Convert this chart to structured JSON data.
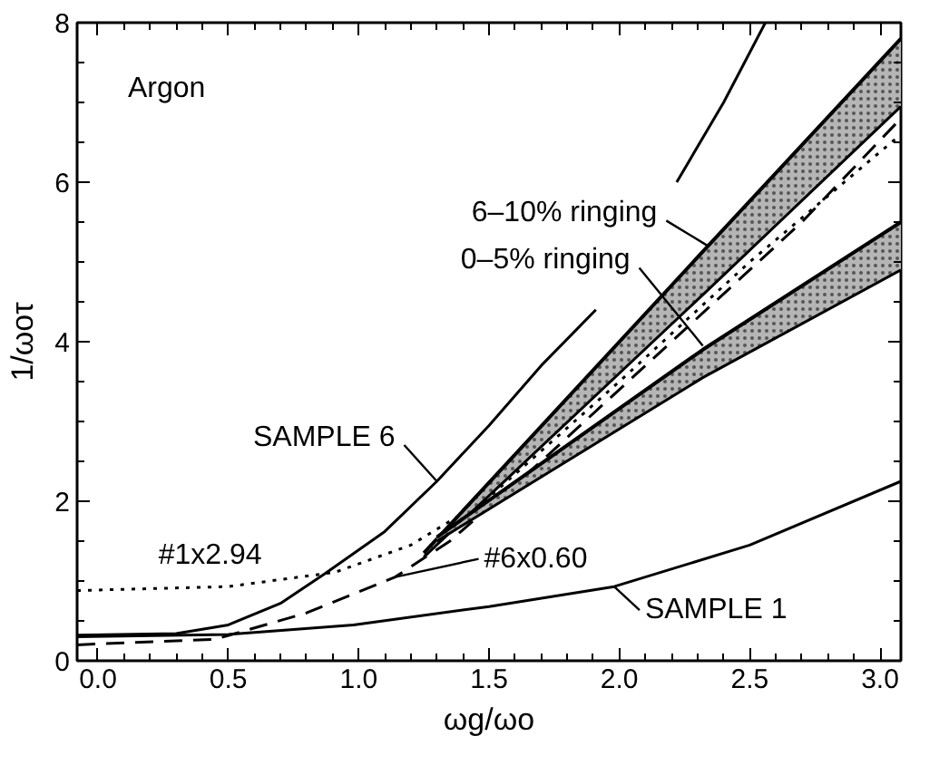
{
  "chart_data": {
    "type": "line",
    "xlabel": "ωg/ωo",
    "ylabel": "1/ωoτ",
    "xlim": [
      -0.08,
      3.08
    ],
    "ylim": [
      0,
      8
    ],
    "xticks": [
      {
        "value": 0,
        "label": "0.0"
      },
      {
        "value": 0.5,
        "label": "0.5"
      },
      {
        "value": 1,
        "label": "1.0"
      },
      {
        "value": 1.5,
        "label": "1.5"
      },
      {
        "value": 2,
        "label": "2.0"
      },
      {
        "value": 2.5,
        "label": "2.5"
      },
      {
        "value": 3,
        "label": "3.0"
      }
    ],
    "yticks": [
      0,
      2,
      4,
      6,
      8
    ],
    "grid": false,
    "marker": "none",
    "series": [
      {
        "color": "#000000",
        "line_style": "solid",
        "x": [
          -0.08,
          0.3,
          0.5,
          0.7,
          0.87,
          1.1,
          1.3,
          1.5,
          1.7,
          1.91,
          2.06,
          2.22,
          2.4,
          2.56
        ],
        "values": [
          0.32,
          0.34,
          0.45,
          0.72,
          1.09,
          1.62,
          2.25,
          2.95,
          3.7,
          4.4,
          null,
          6.0,
          7.0,
          8.0
        ]
      },
      {
        "color": "#000000",
        "line_style": "solid",
        "x": [
          -0.08,
          0.5,
          0.98,
          1.5,
          1.98,
          2.5,
          3.08
        ],
        "values": [
          0.3,
          0.33,
          0.45,
          0.68,
          0.93,
          1.45,
          2.25
        ]
      },
      {
        "color": "#000000",
        "line_style": "dotted",
        "x": [
          -0.08,
          0.5,
          0.91,
          1.2,
          1.5,
          2.0,
          2.5,
          3.08
        ],
        "values": [
          0.88,
          0.93,
          1.11,
          1.45,
          2.05,
          3.5,
          5.0,
          6.6
        ]
      },
      {
        "color": "#000000",
        "line_style": "dashed",
        "x": [
          -0.08,
          0.45,
          0.8,
          1.14,
          1.35,
          1.7,
          2.2,
          2.7,
          3.08
        ],
        "values": [
          0.2,
          0.27,
          0.6,
          1.05,
          1.5,
          2.5,
          4.0,
          5.5,
          6.8
        ]
      },
      {
        "color": "#000000",
        "line_style": "solid",
        "x": [
          1.25,
          2.34,
          3.08
        ],
        "values": [
          1.35,
          5.2,
          7.8
        ],
        "lower": [
          1.3,
          4.65,
          6.95
        ],
        "upper": [
          1.35,
          5.2,
          7.8
        ]
      },
      {
        "color": "#000000",
        "line_style": "solid",
        "x": [
          1.25,
          2.34,
          3.08
        ],
        "values": [
          1.3,
          4.65,
          6.95
        ]
      },
      {
        "color": "#000000",
        "line_style": "solid",
        "x": [
          1.3,
          2.32,
          3.08
        ],
        "values": [
          1.55,
          3.9,
          5.5
        ],
        "lower": [
          1.5,
          3.55,
          4.9
        ],
        "upper": [
          1.55,
          3.9,
          5.5
        ]
      },
      {
        "color": "#000000",
        "line_style": "solid",
        "x": [
          1.3,
          2.32,
          3.08
        ],
        "values": [
          1.5,
          3.55,
          4.9
        ]
      }
    ],
    "annotations": [
      "Argon",
      {
        "text": "6–10% ringing",
        "x": 2.34,
        "y": 5.2
      },
      {
        "text": "0–5% ringing",
        "x": 2.32,
        "y": 3.95
      },
      {
        "text": "SAMPLE 6",
        "x": 1.3,
        "y": 2.25
      },
      {
        "text": "#1x2.94",
        "x": 0.5,
        "y": 0.93
      },
      {
        "text": "#6x0.60",
        "x": 1.14,
        "y": 1.05
      },
      {
        "text": "SAMPLE 1",
        "x": 1.98,
        "y": 0.93
      }
    ]
  }
}
